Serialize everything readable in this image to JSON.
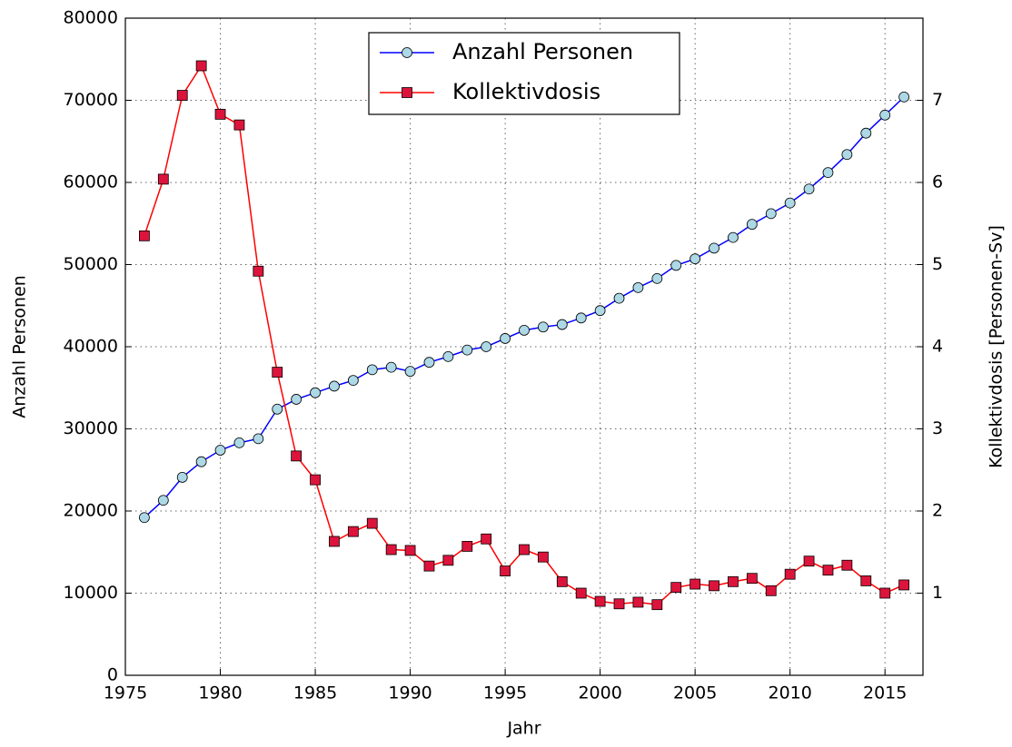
{
  "chart_data": {
    "type": "line",
    "x_label": "Jahr",
    "y_label": "Anzahl Personen",
    "y2_label": "Kollektivdosis [Personen-Sv]",
    "x": [
      1976,
      1977,
      1978,
      1979,
      1980,
      1981,
      1982,
      1983,
      1984,
      1985,
      1986,
      1987,
      1988,
      1989,
      1990,
      1991,
      1992,
      1993,
      1994,
      1995,
      1996,
      1997,
      1998,
      1999,
      2000,
      2001,
      2002,
      2003,
      2004,
      2005,
      2006,
      2007,
      2008,
      2009,
      2010,
      2011,
      2012,
      2013,
      2014,
      2015,
      2016
    ],
    "series": [
      {
        "name": "Anzahl Personen",
        "color": "#0000ff",
        "marker": "circle",
        "marker_color": "#add8e6",
        "values": [
          19200,
          21300,
          24100,
          26000,
          27400,
          28300,
          28800,
          32400,
          33600,
          34400,
          35200,
          35900,
          37200,
          37500,
          37000,
          38100,
          38800,
          39600,
          40000,
          41000,
          42000,
          42400,
          42700,
          43500,
          44400,
          45900,
          47200,
          48300,
          49900,
          50700,
          52000,
          53300,
          54900,
          56200,
          57500,
          59200,
          61200,
          63400,
          66000,
          68200,
          70400
        ]
      },
      {
        "name": "Kollektivdosis",
        "color": "#ff0000",
        "marker": "square",
        "marker_color": "#dc143c",
        "axis": "y2",
        "values": [
          5.35,
          6.04,
          7.06,
          7.42,
          6.83,
          6.7,
          4.92,
          3.69,
          2.67,
          2.38,
          1.63,
          1.75,
          1.85,
          1.53,
          1.52,
          1.33,
          1.4,
          1.57,
          1.66,
          1.27,
          1.53,
          1.44,
          1.14,
          1.0,
          0.9,
          0.87,
          0.89,
          0.86,
          1.07,
          1.11,
          1.09,
          1.14,
          1.18,
          1.03,
          1.23,
          1.39,
          1.28,
          1.34,
          1.15,
          1.0,
          1.1
        ]
      }
    ],
    "xlim": [
      1975,
      2017
    ],
    "xticks": [
      1975,
      1980,
      1985,
      1990,
      1995,
      2000,
      2005,
      2010,
      2015
    ],
    "ylim": [
      0,
      80000
    ],
    "yticks": [
      0,
      10000,
      20000,
      30000,
      40000,
      50000,
      60000,
      70000,
      80000
    ],
    "y2lim": [
      0,
      8
    ],
    "y2ticks": [
      1,
      2,
      3,
      4,
      5,
      6,
      7
    ],
    "grid": true,
    "legend": "upper center"
  }
}
